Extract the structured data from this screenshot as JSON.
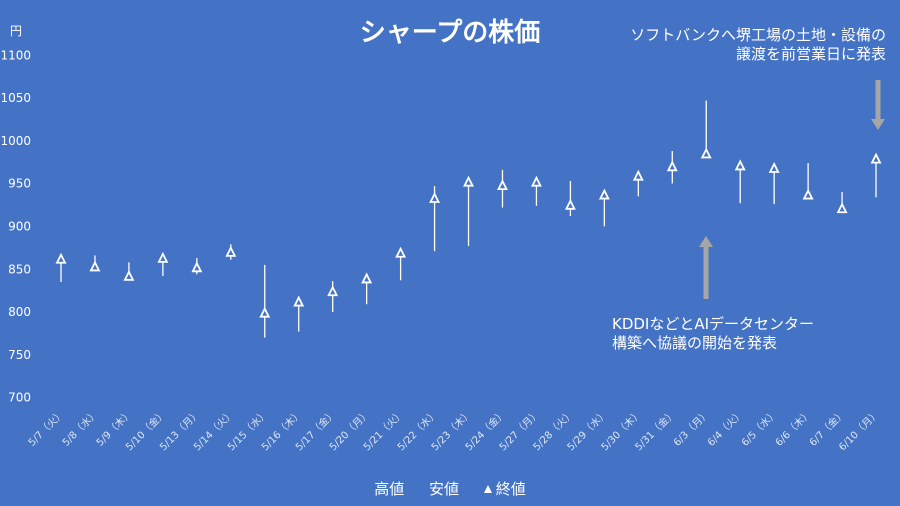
{
  "chart_data": {
    "type": "hilo",
    "title": "シャープの株価",
    "ylabel": "円",
    "ylim": [
      700,
      1100
    ],
    "yticks": [
      700,
      750,
      800,
      850,
      900,
      950,
      1000,
      1050,
      1100
    ],
    "grid": false,
    "legend_placement": "bottom",
    "legend": [
      "高値",
      "安値",
      "終値"
    ],
    "categories": [
      "5/7（火）",
      "5/8（水）",
      "5/9（木）",
      "5/10（金）",
      "5/13（月）",
      "5/14（火）",
      "5/15（水）",
      "5/16（木）",
      "5/17（金）",
      "5/20（月）",
      "5/21（火）",
      "5/22（水）",
      "5/23（木）",
      "5/24（金）",
      "5/27（月）",
      "5/28（火）",
      "5/29（水）",
      "5/30（木）",
      "5/31（金）",
      "6/3（月）",
      "6/4（火）",
      "6/5（水）",
      "6/6（木）",
      "6/7（金）",
      "6/10（月）"
    ],
    "series": [
      {
        "name": "高値",
        "values": [
          862,
          865,
          857,
          862,
          862,
          878,
          854,
          812,
          835,
          839,
          869,
          946,
          952,
          965,
          953,
          952,
          937,
          959,
          987,
          1046,
          972,
          968,
          973,
          939,
          979
        ]
      },
      {
        "name": "安値",
        "values": [
          834,
          848,
          837,
          841,
          843,
          860,
          769,
          776,
          799,
          808,
          836,
          870,
          876,
          921,
          923,
          911,
          899,
          934,
          949,
          983,
          926,
          925,
          935,
          919,
          933
        ]
      },
      {
        "name": "終値",
        "values": [
          860,
          851,
          840,
          861,
          850,
          868,
          797,
          810,
          822,
          837,
          867,
          931,
          950,
          946,
          950,
          923,
          935,
          957,
          968,
          983,
          969,
          966,
          935,
          919,
          977
        ]
      }
    ],
    "annotations": [
      {
        "text": "ソフトバンクへ堺工場の土地・設備の譲渡を前営業日に発表",
        "lines": [
          "ソフトバンクへ堺工場の土地・設備の",
          "譲渡を前営業日に発表"
        ],
        "points_to": "6/10（月）",
        "arrow": "down"
      },
      {
        "text": "KDDIなどとAIデータセンター構築へ協議の開始を発表",
        "lines": [
          "KDDIなどとAIデータセンター",
          "構築へ協議の開始を発表"
        ],
        "points_to": "6/3（月）",
        "arrow": "up"
      }
    ]
  }
}
